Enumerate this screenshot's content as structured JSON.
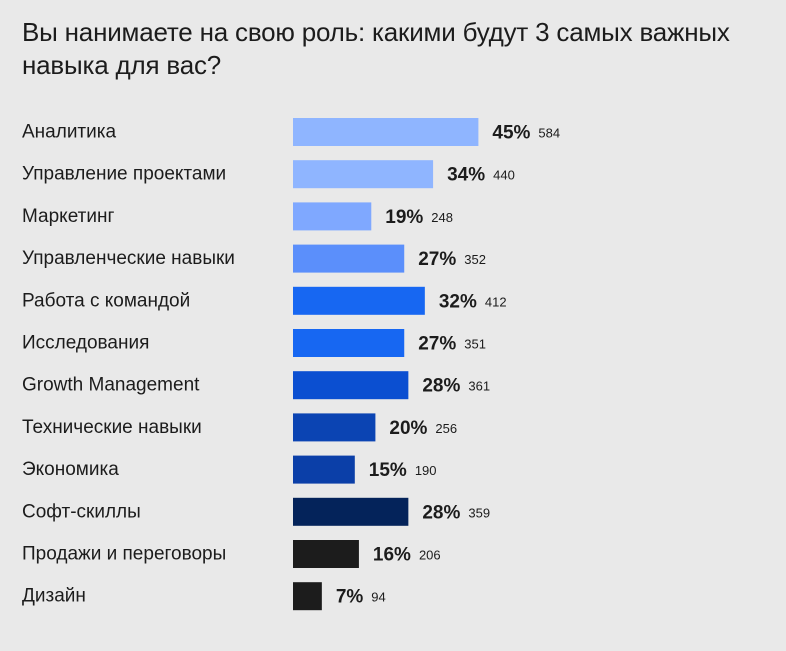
{
  "chart_data": {
    "type": "bar",
    "orientation": "horizontal",
    "title": "Вы нанимаете на свою роль: какими будут 3 самых важных навыка для вас?",
    "categories": [
      "Аналитика",
      "Управление проектами",
      "Маркетинг",
      "Управленческие навыки",
      "Работа с командой",
      "Исследования",
      "Growth Management",
      "Технические навыки",
      "Экономика",
      "Софт-скиллы",
      "Продажи и переговоры",
      "Дизайн"
    ],
    "values": [
      45,
      34,
      19,
      27,
      32,
      27,
      28,
      20,
      15,
      28,
      16,
      7
    ],
    "percent_labels": [
      "45%",
      "34%",
      "19%",
      "27%",
      "32%",
      "27%",
      "28%",
      "20%",
      "15%",
      "28%",
      "16%",
      "7%"
    ],
    "counts": [
      584,
      440,
      248,
      352,
      412,
      351,
      361,
      256,
      190,
      359,
      206,
      94
    ],
    "colors": [
      "#8fb5ff",
      "#8fb5ff",
      "#7fa8ff",
      "#5b8ffb",
      "#1767f2",
      "#1767f2",
      "#0b4fd1",
      "#0b44b3",
      "#0b3fa8",
      "#04235a",
      "#1c1c1c",
      "#1c1c1c"
    ],
    "grid": false,
    "legend": "none"
  }
}
